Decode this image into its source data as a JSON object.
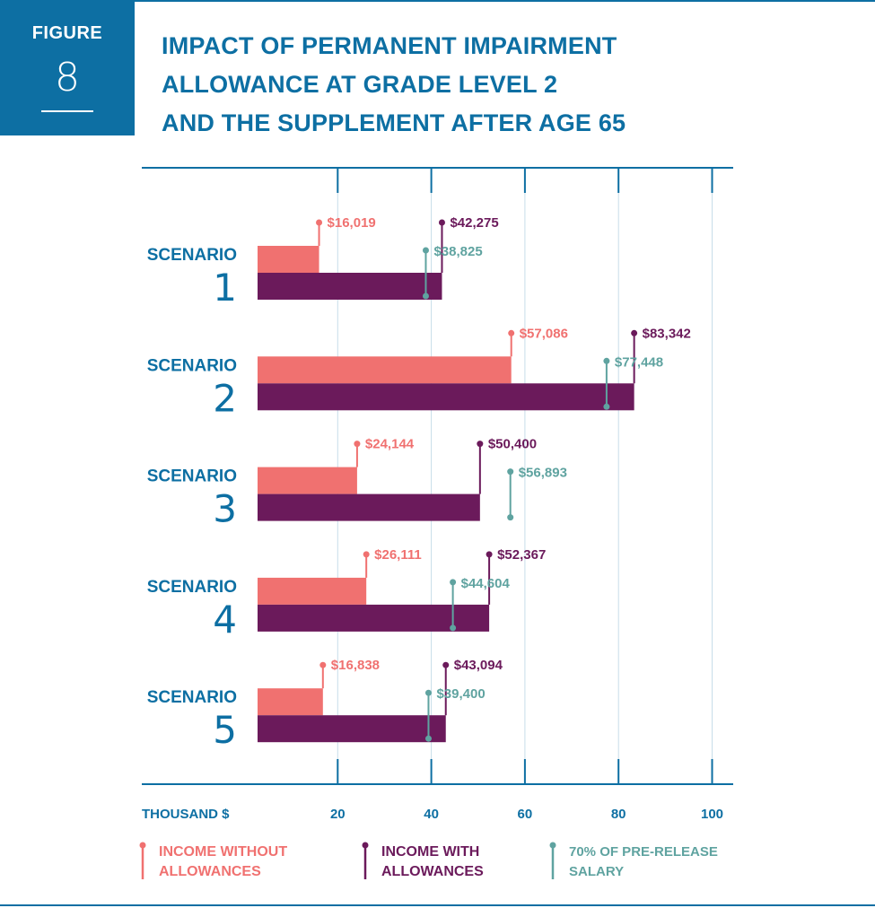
{
  "figure": {
    "label": "FIGURE",
    "number": "8"
  },
  "title_lines": [
    "IMPACT OF PERMANENT IMPAIRMENT",
    "ALLOWANCE AT GRADE LEVEL 2",
    "AND THE SUPPLEMENT AFTER AGE 65"
  ],
  "colors": {
    "brand": "#0d6fa3",
    "without": "#f07170",
    "with": "#6b1a5b",
    "salary": "#5fa3a0",
    "grid": "#c7dde9"
  },
  "legend": {
    "without": [
      "INCOME WITHOUT",
      "ALLOWANCES"
    ],
    "with": [
      "INCOME WITH",
      "ALLOWANCES"
    ],
    "salary": [
      "70% OF PRE-RELEASE",
      "SALARY"
    ]
  },
  "chart_data": {
    "type": "bar",
    "orientation": "horizontal",
    "xlabel": "THOUSAND $",
    "xlim": [
      -25,
      100
    ],
    "xticks": [
      20,
      40,
      60,
      80,
      100
    ],
    "grid": true,
    "scenario_label": "SCENARIO",
    "categories": [
      "1",
      "2",
      "3",
      "4",
      "5"
    ],
    "series": [
      {
        "name": "INCOME WITHOUT ALLOWANCES",
        "key": "without",
        "values": [
          16.019,
          57.086,
          24.144,
          26.111,
          16.838
        ],
        "labels": [
          "$16,019",
          "$57,086",
          "$24,144",
          "$26,111",
          "$16,838"
        ]
      },
      {
        "name": "INCOME WITH ALLOWANCES",
        "key": "with",
        "values": [
          42.275,
          83.342,
          50.4,
          52.367,
          43.094
        ],
        "labels": [
          "$42,275",
          "$83,342",
          "$50,400",
          "$52,367",
          "$43,094"
        ]
      },
      {
        "name": "70% OF PRE-RELEASE SALARY",
        "key": "salary",
        "values": [
          38.825,
          77.448,
          56.893,
          44.604,
          39.4
        ],
        "labels": [
          "$38,825",
          "$77,448",
          "$56,893",
          "$44,604",
          "$39,400"
        ]
      }
    ],
    "legend_position": "bottom"
  }
}
